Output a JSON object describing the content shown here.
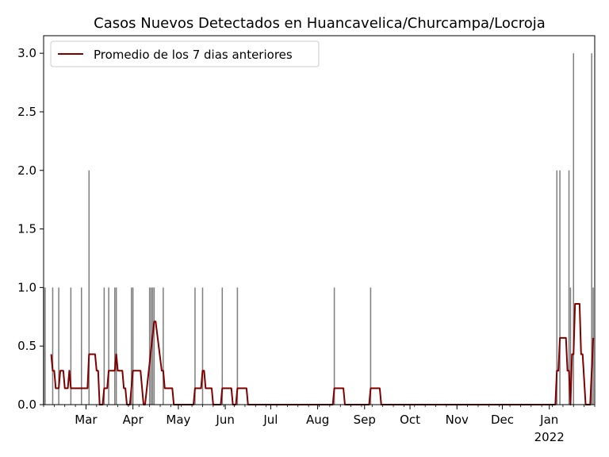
{
  "chart_data": {
    "type": "bar+line",
    "title": "Casos Nuevos Detectados en Huancavelica/Churcampa/Locroja",
    "xlabel": "",
    "ylabel": "",
    "x_range": [
      "2021-02-01",
      "2022-01-31"
    ],
    "ylim": [
      0,
      3.15
    ],
    "y_ticks": [
      0.0,
      0.5,
      1.0,
      1.5,
      2.0,
      2.5,
      3.0
    ],
    "y_tick_labels": [
      "0.0",
      "0.5",
      "1.0",
      "1.5",
      "2.0",
      "2.5",
      "3.0"
    ],
    "x_ticks": [
      {
        "date": "2021-03-01",
        "label": "Mar"
      },
      {
        "date": "2021-04-01",
        "label": "Apr"
      },
      {
        "date": "2021-05-01",
        "label": "May"
      },
      {
        "date": "2021-06-01",
        "label": "Jun"
      },
      {
        "date": "2021-07-01",
        "label": "Jul"
      },
      {
        "date": "2021-08-01",
        "label": "Aug"
      },
      {
        "date": "2021-09-01",
        "label": "Sep"
      },
      {
        "date": "2021-10-01",
        "label": "Oct"
      },
      {
        "date": "2021-11-01",
        "label": "Nov"
      },
      {
        "date": "2021-12-01",
        "label": "Dec"
      },
      {
        "date": "2022-01-01",
        "label": "Jan",
        "sublabel": "2022"
      }
    ],
    "grid": false,
    "legend": {
      "position": "top-left",
      "entries": [
        "Promedio de los 7 dias anteriores"
      ]
    },
    "bar_color": "#808080",
    "line_color": "#800000",
    "bars": {
      "name": "",
      "dates": [
        "2021-02-01",
        "2021-02-02",
        "2021-02-07",
        "2021-02-11",
        "2021-02-19",
        "2021-02-26",
        "2021-03-03",
        "2021-03-13",
        "2021-03-16",
        "2021-03-20",
        "2021-03-21",
        "2021-03-31",
        "2021-04-01",
        "2021-04-12",
        "2021-04-13",
        "2021-04-14",
        "2021-04-15",
        "2021-04-21",
        "2021-05-12",
        "2021-05-17",
        "2021-05-30",
        "2021-06-09",
        "2021-08-12",
        "2021-09-05",
        "2022-01-06",
        "2022-01-08",
        "2022-01-14",
        "2022-01-15",
        "2022-01-17",
        "2022-01-29",
        "2022-01-30"
      ],
      "values": [
        1,
        1,
        1,
        1,
        1,
        1,
        2,
        1,
        1,
        1,
        1,
        1,
        1,
        1,
        1,
        1,
        1,
        1,
        1,
        1,
        1,
        1,
        1,
        1,
        2,
        2,
        2,
        1,
        3,
        3,
        1
      ]
    },
    "series": [
      {
        "name": "Promedio de los 7 dias anteriores",
        "points": [
          [
            "2021-02-06",
            0.43
          ],
          [
            "2021-02-07",
            0.29
          ],
          [
            "2021-02-08",
            0.29
          ],
          [
            "2021-02-09",
            0.14
          ],
          [
            "2021-02-11",
            0.14
          ],
          [
            "2021-02-12",
            0.29
          ],
          [
            "2021-02-14",
            0.29
          ],
          [
            "2021-02-15",
            0.14
          ],
          [
            "2021-02-17",
            0.14
          ],
          [
            "2021-02-18",
            0.29
          ],
          [
            "2021-02-19",
            0.14
          ],
          [
            "2021-03-02",
            0.14
          ],
          [
            "2021-03-03",
            0.43
          ],
          [
            "2021-03-07",
            0.43
          ],
          [
            "2021-03-08",
            0.29
          ],
          [
            "2021-03-09",
            0.29
          ],
          [
            "2021-03-10",
            0.0
          ],
          [
            "2021-03-12",
            0.0
          ],
          [
            "2021-03-13",
            0.14
          ],
          [
            "2021-03-15",
            0.14
          ],
          [
            "2021-03-16",
            0.29
          ],
          [
            "2021-03-20",
            0.29
          ],
          [
            "2021-03-21",
            0.43
          ],
          [
            "2021-03-22",
            0.29
          ],
          [
            "2021-03-25",
            0.29
          ],
          [
            "2021-03-26",
            0.14
          ],
          [
            "2021-03-27",
            0.14
          ],
          [
            "2021-03-28",
            0.0
          ],
          [
            "2021-03-30",
            0.0
          ],
          [
            "2021-04-01",
            0.29
          ],
          [
            "2021-04-06",
            0.29
          ],
          [
            "2021-04-08",
            0.0
          ],
          [
            "2021-04-09",
            0.0
          ],
          [
            "2021-04-15",
            0.71
          ],
          [
            "2021-04-16",
            0.71
          ],
          [
            "2021-04-20",
            0.29
          ],
          [
            "2021-04-21",
            0.29
          ],
          [
            "2021-04-22",
            0.14
          ],
          [
            "2021-04-27",
            0.14
          ],
          [
            "2021-04-28",
            0.0
          ],
          [
            "2021-05-11",
            0.0
          ],
          [
            "2021-05-12",
            0.14
          ],
          [
            "2021-05-16",
            0.14
          ],
          [
            "2021-05-17",
            0.29
          ],
          [
            "2021-05-18",
            0.29
          ],
          [
            "2021-05-19",
            0.14
          ],
          [
            "2021-05-23",
            0.14
          ],
          [
            "2021-05-24",
            0.0
          ],
          [
            "2021-05-29",
            0.0
          ],
          [
            "2021-05-30",
            0.14
          ],
          [
            "2021-06-05",
            0.14
          ],
          [
            "2021-06-06",
            0.0
          ],
          [
            "2021-06-08",
            0.0
          ],
          [
            "2021-06-09",
            0.14
          ],
          [
            "2021-06-15",
            0.14
          ],
          [
            "2021-06-16",
            0.0
          ],
          [
            "2021-08-11",
            0.0
          ],
          [
            "2021-08-12",
            0.14
          ],
          [
            "2021-08-18",
            0.14
          ],
          [
            "2021-08-19",
            0.0
          ],
          [
            "2021-09-04",
            0.0
          ],
          [
            "2021-09-05",
            0.14
          ],
          [
            "2021-09-11",
            0.14
          ],
          [
            "2021-09-12",
            0.0
          ],
          [
            "2022-01-05",
            0.0
          ],
          [
            "2022-01-06",
            0.29
          ],
          [
            "2022-01-07",
            0.29
          ],
          [
            "2022-01-08",
            0.57
          ],
          [
            "2022-01-12",
            0.57
          ],
          [
            "2022-01-13",
            0.29
          ],
          [
            "2022-01-14",
            0.29
          ],
          [
            "2022-01-15",
            0.0
          ],
          [
            "2022-01-16",
            0.43
          ],
          [
            "2022-01-17",
            0.43
          ],
          [
            "2022-01-18",
            0.86
          ],
          [
            "2022-01-21",
            0.86
          ],
          [
            "2022-01-22",
            0.43
          ],
          [
            "2022-01-23",
            0.43
          ],
          [
            "2022-01-25",
            0.0
          ],
          [
            "2022-01-28",
            0.0
          ],
          [
            "2022-01-30",
            0.57
          ]
        ]
      }
    ]
  }
}
